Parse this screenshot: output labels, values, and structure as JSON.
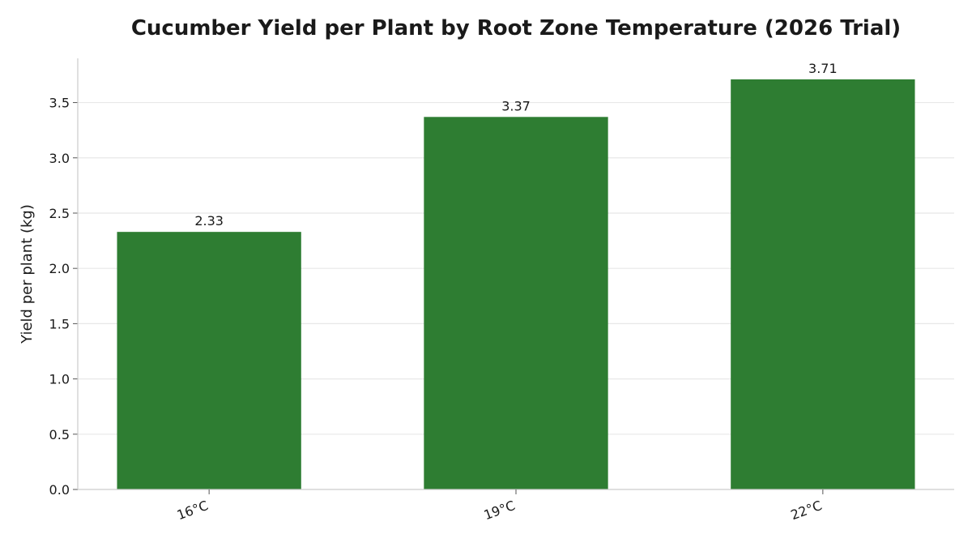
{
  "chart_data": {
    "type": "bar",
    "title": "Cucumber Yield per Plant by Root Zone Temperature (2026 Trial)",
    "xlabel": "",
    "ylabel": "Yield per plant (kg)",
    "categories": [
      "16°C",
      "19°C",
      "22°C"
    ],
    "values": [
      2.33,
      3.37,
      3.71
    ],
    "data_labels": [
      "2.33",
      "3.37",
      "3.71"
    ],
    "ylim": [
      0,
      3.9
    ],
    "yticks": [
      0.0,
      0.5,
      1.0,
      1.5,
      2.0,
      2.5,
      3.0,
      3.5
    ],
    "ytick_labels": [
      "0.0",
      "0.5",
      "1.0",
      "1.5",
      "2.0",
      "2.5",
      "3.0",
      "3.5"
    ],
    "bar_color": "#2e7d32",
    "grid": "horizontal",
    "legend": "none"
  }
}
